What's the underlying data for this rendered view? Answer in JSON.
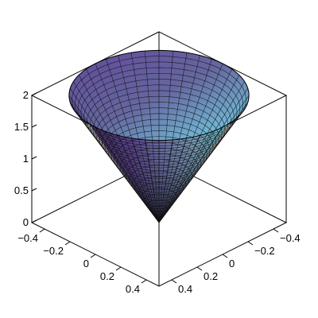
{
  "chart_data": {
    "type": "surface3d",
    "shape": "cone",
    "surface": "z = 2*sqrt(x^2 + y^2) / 0.5, cone of radius 0.5 and height 2",
    "radius": 0.5,
    "height": 2,
    "xlim": [
      -0.5,
      0.5
    ],
    "ylim": [
      -0.5,
      0.5
    ],
    "zlim": [
      0,
      2
    ],
    "z_ticks": [
      {
        "value": 0,
        "label": "0"
      },
      {
        "value": 0.5,
        "label": "0.5"
      },
      {
        "value": 1,
        "label": "1"
      },
      {
        "value": 1.5,
        "label": "1.5"
      },
      {
        "value": 2,
        "label": "2"
      }
    ],
    "x_ticks": [
      {
        "value": -0.4,
        "label": "−0.4"
      },
      {
        "value": -0.2,
        "label": "−0.2"
      },
      {
        "value": 0,
        "label": "0"
      },
      {
        "value": 0.2,
        "label": "0.2"
      },
      {
        "value": 0.4,
        "label": "0.4"
      }
    ],
    "y_ticks": [
      {
        "value": -0.4,
        "label": "−0.4"
      },
      {
        "value": -0.2,
        "label": "−0.2"
      },
      {
        "value": 0,
        "label": "0"
      },
      {
        "value": 0.2,
        "label": "0.2"
      },
      {
        "value": 0.4,
        "label": "0.4"
      }
    ],
    "mesh": {
      "theta_lines": 40,
      "height_lines": 30
    },
    "colors": {
      "dark": "#2a1a33",
      "purple": "#6a4fa8",
      "cyan": "#5cf0f8"
    },
    "grid": false,
    "title": "",
    "xlabel": "",
    "ylabel": "",
    "zlabel": ""
  }
}
